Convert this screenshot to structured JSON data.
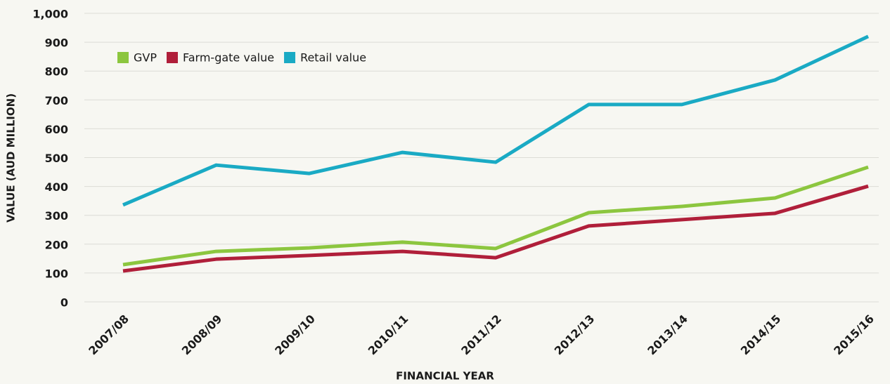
{
  "chart_data": {
    "type": "line",
    "x_label": "FINANCIAL YEAR",
    "y_label": "VALUE (AUD MILLION)",
    "categories": [
      "2007/08",
      "2008/09",
      "2009/10",
      "2010/11",
      "2011/12",
      "2012/13",
      "2013/14",
      "2014/15",
      "2015/16"
    ],
    "series": [
      {
        "name": "GVP",
        "color": "#8cc63f",
        "values": [
          129,
          175,
          187,
          207,
          185,
          309,
          331,
          360,
          467
        ]
      },
      {
        "name": "Farm-gate value",
        "color": "#b01f3a",
        "values": [
          107,
          148,
          161,
          175,
          153,
          263,
          285,
          307,
          401
        ]
      },
      {
        "name": "Retail value",
        "color": "#1aaac4",
        "values": [
          336,
          474,
          445,
          518,
          484,
          684,
          684,
          769,
          920
        ]
      }
    ],
    "ylim": [
      0,
      1000
    ],
    "yticks": [
      0,
      100,
      200,
      300,
      400,
      500,
      600,
      700,
      800,
      900,
      {
        "value": 1000,
        "label": "1,000"
      }
    ],
    "grid": true,
    "legend": "upper left"
  }
}
